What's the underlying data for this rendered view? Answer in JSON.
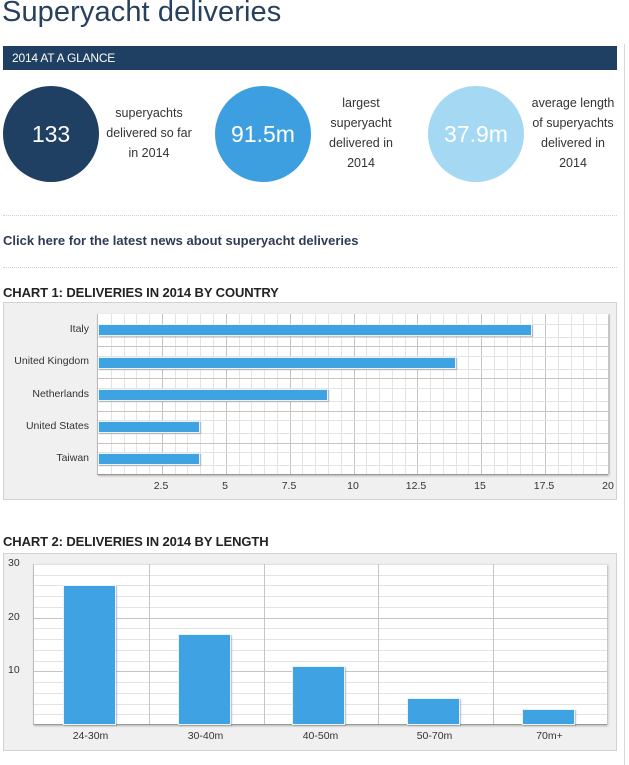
{
  "page": {
    "title": "Superyacht deliveries"
  },
  "glance": {
    "header": "2014 AT A GLANCE",
    "stats": [
      {
        "value": "133",
        "caption": "superyachts\ndelivered so far\nin 2014",
        "color": "#1f3f63"
      },
      {
        "value": "91.5m",
        "caption": "largest\nsuperyacht\ndelivered in\n2014",
        "color": "#3d9fe0"
      },
      {
        "value": "37.9m",
        "caption": "average length\nof superyachts\ndelivered in\n2014",
        "color": "#a5d9f3"
      }
    ]
  },
  "news_link": {
    "label": "Click here for the latest news about superyacht deliveries"
  },
  "colors": {
    "navy": "#1f3f63",
    "bar_blue": "#3fa2e2",
    "light_blue": "#a5d9f3"
  },
  "chart_data": [
    {
      "type": "bar",
      "orientation": "horizontal",
      "title": "CHART 1: DELIVERIES IN 2014 BY COUNTRY",
      "categories": [
        "Italy",
        "United Kingdom",
        "Netherlands",
        "United States",
        "Taiwan"
      ],
      "values": [
        17,
        14,
        9,
        4,
        4
      ],
      "xlabel": "",
      "ylabel": "",
      "xlim": [
        0,
        20
      ],
      "xticks": [
        "2.5",
        "5",
        "7.5",
        "10",
        "12.5",
        "15",
        "17.5",
        "20"
      ],
      "grid": true,
      "legend": null
    },
    {
      "type": "bar",
      "orientation": "vertical",
      "title": "CHART 2: DELIVERIES IN 2014 BY LENGTH",
      "categories": [
        "24-30m",
        "30-40m",
        "40-50m",
        "50-70m",
        "70m+"
      ],
      "values": [
        26,
        17,
        11,
        5,
        3
      ],
      "xlabel": "",
      "ylabel": "",
      "ylim": [
        0,
        30
      ],
      "yticks": [
        "10",
        "20",
        "30"
      ],
      "grid": true,
      "legend": null
    }
  ]
}
